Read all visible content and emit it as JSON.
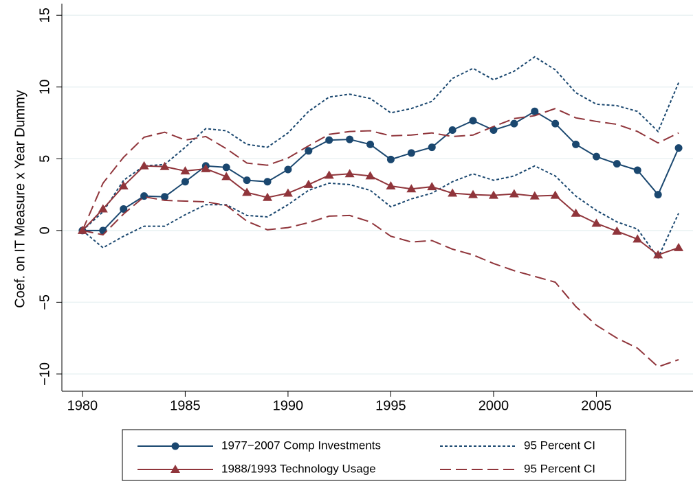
{
  "chart_data": {
    "type": "line",
    "y_label": "Coef. on IT Measure x Year Dummy",
    "x": [
      1980,
      1981,
      1982,
      1983,
      1984,
      1985,
      1986,
      1987,
      1988,
      1989,
      1990,
      1991,
      1992,
      1993,
      1994,
      1995,
      1996,
      1997,
      1998,
      1999,
      2000,
      2001,
      2002,
      2003,
      2004,
      2005,
      2006,
      2007,
      2008,
      2009
    ],
    "xlim": [
      1979,
      2009.7
    ],
    "xticks": [
      1980,
      1985,
      1990,
      1995,
      2000,
      2005
    ],
    "ylim": [
      -11.2,
      15.8
    ],
    "yticks": [
      15,
      10,
      5,
      0,
      {
        "value": -5,
        "label": "−5"
      },
      {
        "value": -10,
        "label": "−10"
      }
    ],
    "grid": true,
    "series": [
      {
        "name": "1977−2007 Comp Investments",
        "color": "#1a476f",
        "style": "solid",
        "marker": "circle",
        "values": [
          0,
          0,
          1.5,
          2.4,
          2.35,
          3.4,
          4.5,
          4.4,
          3.5,
          3.4,
          4.25,
          5.55,
          6.3,
          6.35,
          6.0,
          4.95,
          5.4,
          5.8,
          7.0,
          7.65,
          7.0,
          7.45,
          8.3,
          7.45,
          6.0,
          5.15,
          4.65,
          4.2,
          2.5,
          5.75
        ]
      },
      {
        "name": "95 Percent CI",
        "color": "#1a476f",
        "style": "short-dash",
        "upper": [
          0,
          1.3,
          3.5,
          4.5,
          4.6,
          5.8,
          7.1,
          6.95,
          6.0,
          5.8,
          6.8,
          8.3,
          9.3,
          9.5,
          9.2,
          8.2,
          8.5,
          9.0,
          10.6,
          11.3,
          10.5,
          11.1,
          12.1,
          11.2,
          9.6,
          8.8,
          8.7,
          8.3,
          6.9,
          10.3
        ],
        "lower": [
          0,
          -1.2,
          -0.4,
          0.3,
          0.3,
          1.1,
          1.8,
          1.8,
          1.05,
          0.95,
          1.8,
          2.8,
          3.3,
          3.2,
          2.8,
          1.65,
          2.2,
          2.6,
          3.4,
          3.95,
          3.5,
          3.8,
          4.5,
          3.8,
          2.4,
          1.4,
          0.6,
          0.1,
          -1.9,
          1.2
        ]
      },
      {
        "name": "1988/1993 Technology Usage",
        "color": "#90353b",
        "style": "solid",
        "marker": "triangle",
        "values": [
          0,
          1.5,
          3.1,
          4.5,
          4.45,
          4.15,
          4.3,
          3.75,
          2.65,
          2.3,
          2.6,
          3.2,
          3.85,
          3.95,
          3.8,
          3.1,
          2.9,
          3.05,
          2.6,
          2.5,
          2.45,
          2.55,
          2.4,
          2.45,
          1.2,
          0.5,
          -0.05,
          -0.6,
          -1.7,
          -1.2
        ]
      },
      {
        "name": "95 Percent CI",
        "color": "#90353b",
        "style": "long-dash",
        "upper": [
          0,
          3.3,
          5.1,
          6.5,
          6.85,
          6.3,
          6.55,
          5.7,
          4.7,
          4.55,
          5.05,
          5.9,
          6.7,
          6.9,
          6.95,
          6.6,
          6.65,
          6.8,
          6.55,
          6.65,
          7.25,
          7.8,
          8.0,
          8.5,
          7.85,
          7.6,
          7.4,
          6.9,
          6.1,
          6.8
        ],
        "lower": [
          0,
          -0.3,
          1.15,
          2.35,
          2.1,
          2.05,
          2.0,
          1.75,
          0.65,
          0.05,
          0.2,
          0.55,
          1.0,
          1.05,
          0.6,
          -0.4,
          -0.8,
          -0.7,
          -1.3,
          -1.7,
          -2.3,
          -2.8,
          -3.2,
          -3.6,
          -5.3,
          -6.6,
          -7.5,
          -8.2,
          -9.5,
          -9.0
        ]
      }
    ]
  }
}
